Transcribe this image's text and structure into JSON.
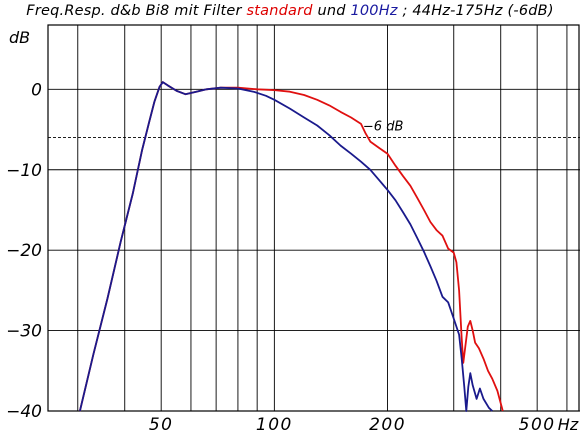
{
  "title": {
    "prefix": "Freq.Resp. d&b Bi8 mit Filter ",
    "red_word": "standard",
    "mid": " und ",
    "blue_word": "100Hz",
    "suffix": " ; 44Hz-175Hz (-6dB)"
  },
  "chart_data": {
    "type": "line",
    "xscale": "log",
    "xlim": [
      25,
      650
    ],
    "ylim": [
      -40,
      8
    ],
    "ylabel": "dB",
    "xunit": "Hz",
    "grid": true,
    "y_ticks": [
      {
        "value": 0,
        "label": "0"
      },
      {
        "value": -10,
        "label": "−10"
      },
      {
        "value": -20,
        "label": "−20"
      },
      {
        "value": -30,
        "label": "−30"
      },
      {
        "value": -40,
        "label": "−40"
      }
    ],
    "x_ticks": [
      {
        "value": 50,
        "label": "50"
      },
      {
        "value": 100,
        "label": "100"
      },
      {
        "value": 200,
        "label": "200"
      },
      {
        "value": 500,
        "label": "500"
      }
    ],
    "x_gridlines": [
      30,
      40,
      50,
      60,
      70,
      80,
      90,
      100,
      200,
      300,
      400,
      500,
      600
    ],
    "reference_line": {
      "value": -6,
      "label": "−6 dB",
      "style": "dashed"
    },
    "colors": {
      "standard": "#e01010",
      "hz100": "#1a1a8c",
      "grid": "#000000"
    },
    "series": [
      {
        "name": "standard",
        "color": "#e01010",
        "points": [
          [
            30.4,
            -40
          ],
          [
            33,
            -33
          ],
          [
            36,
            -26
          ],
          [
            39,
            -19
          ],
          [
            42,
            -13
          ],
          [
            44.5,
            -7.5
          ],
          [
            46.5,
            -4
          ],
          [
            48,
            -1.5
          ],
          [
            49.5,
            0.3
          ],
          [
            50.5,
            0.9
          ],
          [
            52,
            0.5
          ],
          [
            55,
            -0.2
          ],
          [
            58,
            -0.6
          ],
          [
            62,
            -0.3
          ],
          [
            66,
            0
          ],
          [
            72,
            0.2
          ],
          [
            80,
            0.2
          ],
          [
            90,
            0
          ],
          [
            100,
            -0.1
          ],
          [
            110,
            -0.3
          ],
          [
            120,
            -0.7
          ],
          [
            130,
            -1.3
          ],
          [
            140,
            -2
          ],
          [
            150,
            -2.8
          ],
          [
            160,
            -3.5
          ],
          [
            170,
            -4.3
          ],
          [
            175,
            -5.5
          ],
          [
            180,
            -6.5
          ],
          [
            190,
            -7.3
          ],
          [
            200,
            -8
          ],
          [
            210,
            -9.5
          ],
          [
            220,
            -10.8
          ],
          [
            230,
            -12
          ],
          [
            240,
            -13.5
          ],
          [
            250,
            -15
          ],
          [
            260,
            -16.5
          ],
          [
            270,
            -17.5
          ],
          [
            280,
            -18.2
          ],
          [
            290,
            -19.8
          ],
          [
            300,
            -20.3
          ],
          [
            305,
            -21.5
          ],
          [
            310,
            -25
          ],
          [
            315,
            -31
          ],
          [
            318,
            -34
          ],
          [
            322,
            -32
          ],
          [
            327,
            -29.5
          ],
          [
            332,
            -28.8
          ],
          [
            337,
            -30
          ],
          [
            342,
            -31.5
          ],
          [
            350,
            -32.2
          ],
          [
            360,
            -33.5
          ],
          [
            370,
            -35
          ],
          [
            380,
            -36
          ],
          [
            392,
            -37.5
          ],
          [
            405,
            -40
          ]
        ]
      },
      {
        "name": "100Hz",
        "color": "#1a1a8c",
        "points": [
          [
            30.4,
            -40
          ],
          [
            33,
            -33
          ],
          [
            36,
            -26
          ],
          [
            39,
            -19
          ],
          [
            42,
            -13
          ],
          [
            44.5,
            -7.5
          ],
          [
            46.5,
            -4
          ],
          [
            48,
            -1.5
          ],
          [
            49.5,
            0.3
          ],
          [
            50.5,
            0.9
          ],
          [
            52,
            0.5
          ],
          [
            55,
            -0.2
          ],
          [
            58,
            -0.6
          ],
          [
            62,
            -0.3
          ],
          [
            66,
            0
          ],
          [
            72,
            0.2
          ],
          [
            80,
            0.1
          ],
          [
            88,
            -0.3
          ],
          [
            95,
            -0.8
          ],
          [
            100,
            -1.3
          ],
          [
            110,
            -2.4
          ],
          [
            120,
            -3.5
          ],
          [
            130,
            -4.5
          ],
          [
            140,
            -5.7
          ],
          [
            150,
            -7
          ],
          [
            160,
            -8
          ],
          [
            170,
            -9
          ],
          [
            180,
            -10
          ],
          [
            190,
            -11.3
          ],
          [
            200,
            -12.5
          ],
          [
            210,
            -13.8
          ],
          [
            220,
            -15.3
          ],
          [
            230,
            -16.8
          ],
          [
            240,
            -18.5
          ],
          [
            250,
            -20.2
          ],
          [
            260,
            -22
          ],
          [
            270,
            -23.8
          ],
          [
            280,
            -25.8
          ],
          [
            290,
            -26.5
          ],
          [
            300,
            -28.5
          ],
          [
            310,
            -30.5
          ],
          [
            315,
            -33.5
          ],
          [
            320,
            -37
          ],
          [
            324,
            -40
          ],
          [
            328,
            -37
          ],
          [
            332,
            -35.3
          ],
          [
            337,
            -36.8
          ],
          [
            345,
            -38.5
          ],
          [
            352,
            -37.2
          ],
          [
            360,
            -38.5
          ],
          [
            372,
            -39.6
          ],
          [
            380,
            -40
          ]
        ]
      }
    ]
  }
}
